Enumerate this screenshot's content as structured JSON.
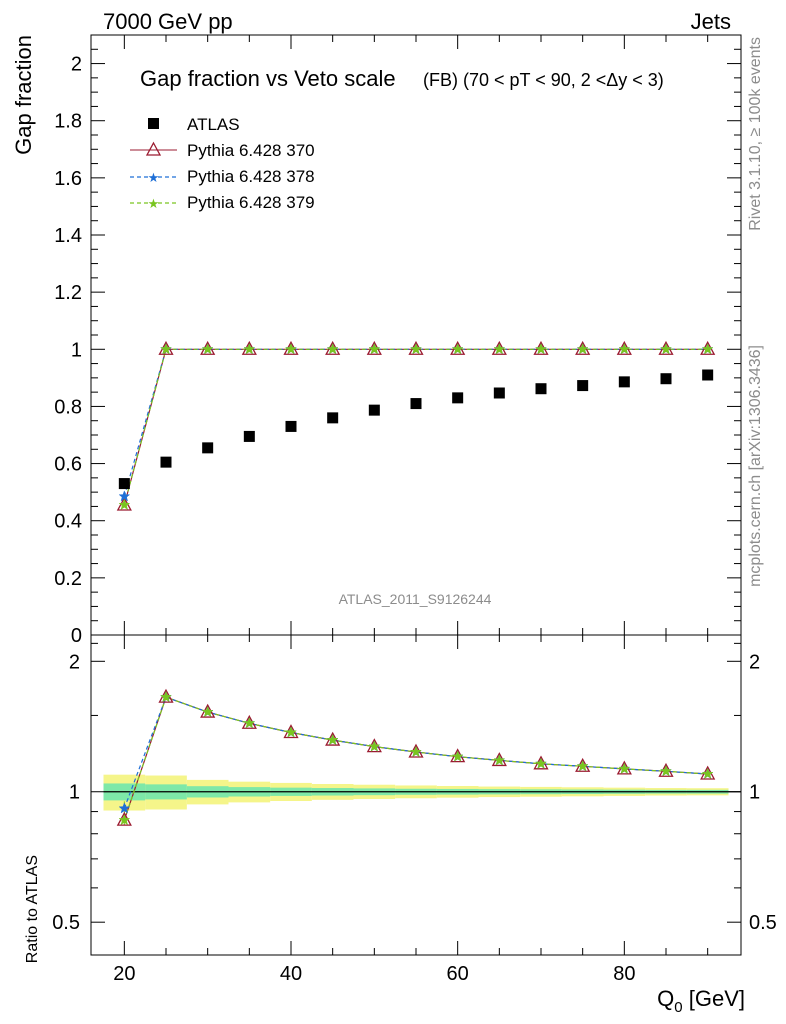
{
  "header": {
    "left": "7000 GeV pp",
    "right": "Jets"
  },
  "side_labels": {
    "rivet": "Rivet 3.1.10, ≥ 100k events",
    "mcplots": "mcplots.cern.ch [arXiv:1306.3436]"
  },
  "watermark": "ATLAS_2011_S9126244",
  "colors": {
    "atlas": "#000000",
    "p370": "#9b1b30",
    "p378": "#1f6fd6",
    "p379": "#7ac520",
    "band_inner": "#7ee8a8",
    "band_outer": "#f5f58a"
  },
  "chart_data": [
    {
      "type": "scatter",
      "panel": "main",
      "title_main": "Gap fraction vs Veto scale",
      "title_sub": "(FB) (70 < pT <  90, 2 <Δy < 3)",
      "ylabel": "Gap fraction",
      "ylim": [
        0,
        2.1
      ],
      "xlim": [
        16,
        94
      ],
      "yticks": [
        0,
        0.2,
        0.4,
        0.6,
        0.8,
        1,
        1.2,
        1.4,
        1.6,
        1.8,
        2
      ],
      "ytick_labels": [
        "0",
        "0.2",
        "0.4",
        "0.6",
        "0.8",
        "1",
        "1.2",
        "1.4",
        "1.6",
        "1.8",
        "2"
      ],
      "x": [
        20,
        25,
        30,
        35,
        40,
        45,
        50,
        55,
        60,
        65,
        70,
        75,
        80,
        85,
        90
      ],
      "series": [
        {
          "name": "ATLAS",
          "marker": "square",
          "values": [
            0.53,
            0.605,
            0.655,
            0.695,
            0.73,
            0.76,
            0.787,
            0.81,
            0.83,
            0.847,
            0.862,
            0.873,
            0.886,
            0.897,
            0.91
          ]
        },
        {
          "name": "Pythia 6.428 370",
          "marker": "triangle",
          "values": [
            0.455,
            1,
            1,
            1,
            1,
            1,
            1,
            1,
            1,
            1,
            1,
            1,
            1,
            1,
            1
          ]
        },
        {
          "name": "Pythia 6.428 378",
          "marker": "star",
          "values": [
            0.485,
            1,
            1,
            1,
            1,
            1,
            1,
            1,
            1,
            1,
            1,
            1,
            1,
            1,
            1
          ]
        },
        {
          "name": "Pythia 6.428 379",
          "marker": "star",
          "values": [
            0.455,
            1,
            1,
            1,
            1,
            1,
            1,
            1,
            1,
            1,
            1,
            1,
            1,
            1,
            1
          ]
        }
      ]
    },
    {
      "type": "line",
      "panel": "ratio",
      "ylabel": "Ratio to ATLAS",
      "xlabel": "Q",
      "xlabel_sub": "0",
      "xlabel_unit": " [GeV]",
      "ylim": [
        0.42,
        2.3
      ],
      "scale": "log",
      "yticks": [
        0.5,
        1,
        2
      ],
      "ytick_labels": [
        "0.5",
        "1",
        "2"
      ],
      "xticks": [
        20,
        40,
        60,
        80
      ],
      "xtick_labels": [
        "20",
        "40",
        "60",
        "80"
      ],
      "x": [
        20,
        25,
        30,
        35,
        40,
        45,
        50,
        55,
        60,
        65,
        70,
        75,
        80,
        85,
        90
      ],
      "series": [
        {
          "name": "Pythia 6.428 370",
          "values": [
            0.86,
            1.653,
            1.527,
            1.439,
            1.37,
            1.316,
            1.271,
            1.235,
            1.205,
            1.181,
            1.16,
            1.145,
            1.129,
            1.115,
            1.099
          ]
        },
        {
          "name": "Pythia 6.428 378",
          "values": [
            0.915,
            1.653,
            1.527,
            1.439,
            1.37,
            1.316,
            1.271,
            1.235,
            1.205,
            1.181,
            1.16,
            1.145,
            1.129,
            1.115,
            1.099
          ]
        },
        {
          "name": "Pythia 6.428 379",
          "values": [
            0.86,
            1.653,
            1.527,
            1.439,
            1.37,
            1.316,
            1.271,
            1.235,
            1.205,
            1.181,
            1.16,
            1.145,
            1.129,
            1.115,
            1.099
          ]
        }
      ],
      "uncertainty_band": {
        "edges": [
          17.5,
          22.5,
          27.5,
          32.5,
          37.5,
          42.5,
          47.5,
          52.5,
          57.5,
          62.5,
          67.5,
          72.5,
          77.5,
          82.5,
          87.5,
          92.5
        ],
        "inner": [
          0.045,
          0.04,
          0.03,
          0.025,
          0.022,
          0.02,
          0.018,
          0.016,
          0.015,
          0.014,
          0.013,
          0.012,
          0.011,
          0.01,
          0.01
        ],
        "outer": [
          0.095,
          0.09,
          0.065,
          0.055,
          0.048,
          0.042,
          0.038,
          0.034,
          0.031,
          0.028,
          0.026,
          0.024,
          0.022,
          0.02,
          0.019
        ]
      }
    }
  ]
}
